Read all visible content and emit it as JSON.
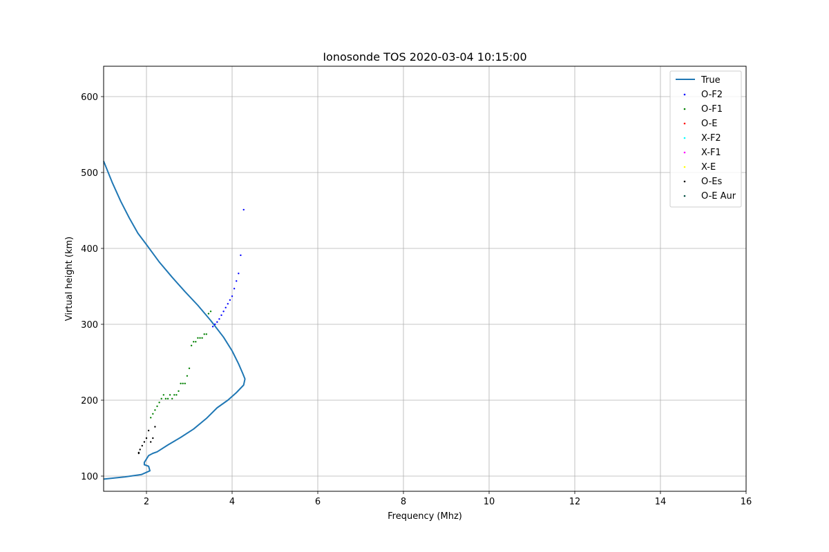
{
  "chart_data": {
    "type": "scatter",
    "title": "Ionosonde TOS 2020-03-04 10:15:00",
    "xlabel": "Frequency (Mhz)",
    "ylabel": "Virtual height (km)",
    "xlim": [
      1,
      16
    ],
    "ylim": [
      80,
      640
    ],
    "xticks": [
      2,
      4,
      6,
      8,
      10,
      12,
      14,
      16
    ],
    "yticks": [
      100,
      200,
      300,
      400,
      500,
      600
    ],
    "grid": true,
    "legend_position": "top-right",
    "line_series": {
      "name": "True",
      "color": "#1f77b4",
      "points": [
        [
          1.0,
          515
        ],
        [
          1.2,
          487
        ],
        [
          1.4,
          462
        ],
        [
          1.6,
          440
        ],
        [
          1.8,
          420
        ],
        [
          2.0,
          405
        ],
        [
          2.3,
          382
        ],
        [
          2.6,
          362
        ],
        [
          2.9,
          343
        ],
        [
          3.2,
          325
        ],
        [
          3.5,
          305
        ],
        [
          3.8,
          283
        ],
        [
          4.0,
          265
        ],
        [
          4.15,
          248
        ],
        [
          4.25,
          235
        ],
        [
          4.3,
          228
        ],
        [
          4.27,
          220
        ],
        [
          4.1,
          210
        ],
        [
          3.9,
          200
        ],
        [
          3.65,
          190
        ],
        [
          3.4,
          176
        ],
        [
          3.1,
          162
        ],
        [
          2.8,
          151
        ],
        [
          2.5,
          141
        ],
        [
          2.25,
          132
        ],
        [
          2.15,
          130
        ],
        [
          2.05,
          127
        ],
        [
          1.95,
          118
        ],
        [
          1.95,
          115
        ],
        [
          2.05,
          113
        ],
        [
          2.08,
          107
        ],
        [
          1.88,
          102
        ],
        [
          1.5,
          99
        ],
        [
          1.0,
          96
        ]
      ]
    },
    "scatter_series": [
      {
        "name": "O-F2",
        "color": "#0000ff",
        "points": [
          [
            4.27,
            451
          ],
          [
            4.2,
            391
          ],
          [
            4.15,
            367
          ],
          [
            4.1,
            357
          ],
          [
            4.05,
            347
          ],
          [
            4.0,
            337
          ],
          [
            3.95,
            332
          ],
          [
            3.9,
            327
          ],
          [
            3.85,
            322
          ],
          [
            3.8,
            317
          ],
          [
            3.75,
            312
          ],
          [
            3.7,
            307
          ],
          [
            3.65,
            303
          ],
          [
            3.6,
            300
          ],
          [
            3.55,
            297
          ]
        ]
      },
      {
        "name": "O-F1",
        "color": "#008000",
        "points": [
          [
            3.5,
            317
          ],
          [
            3.45,
            314
          ],
          [
            3.4,
            287
          ],
          [
            3.35,
            287
          ],
          [
            3.3,
            282
          ],
          [
            3.25,
            282
          ],
          [
            3.2,
            282
          ],
          [
            3.15,
            277
          ],
          [
            3.1,
            277
          ],
          [
            3.05,
            272
          ],
          [
            3.0,
            242
          ],
          [
            2.95,
            232
          ],
          [
            2.9,
            222
          ],
          [
            2.85,
            222
          ],
          [
            2.8,
            222
          ],
          [
            2.75,
            212
          ],
          [
            2.7,
            207
          ],
          [
            2.65,
            207
          ],
          [
            2.6,
            202
          ],
          [
            2.55,
            207
          ],
          [
            2.5,
            202
          ],
          [
            2.45,
            202
          ],
          [
            2.4,
            207
          ],
          [
            2.35,
            202
          ],
          [
            2.3,
            197
          ],
          [
            2.25,
            192
          ],
          [
            2.2,
            187
          ],
          [
            2.15,
            182
          ],
          [
            2.1,
            177
          ]
        ]
      },
      {
        "name": "O-E",
        "color": "#ff0000",
        "points": []
      },
      {
        "name": "X-F2",
        "color": "#00ffff",
        "points": []
      },
      {
        "name": "X-F1",
        "color": "#ff00ff",
        "points": []
      },
      {
        "name": "X-E",
        "color": "#ffff00",
        "points": []
      },
      {
        "name": "O-Es",
        "color": "#000000",
        "points": [
          [
            2.2,
            165
          ],
          [
            2.05,
            160
          ],
          [
            2.15,
            150
          ],
          [
            2.0,
            150
          ],
          [
            2.1,
            145
          ],
          [
            1.95,
            145
          ],
          [
            1.9,
            140
          ],
          [
            1.85,
            135
          ],
          [
            1.82,
            131
          ],
          [
            1.82,
            130
          ]
        ]
      },
      {
        "name": "O-E Aur",
        "color": "#004d40",
        "points": []
      }
    ]
  }
}
